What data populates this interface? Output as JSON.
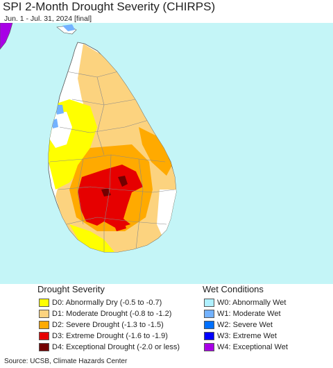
{
  "title": "SPI 2-Month Drought Severity (CHIRPS)",
  "subtitle": "Jun. 1 - Jul. 31, 2024 [final]",
  "legend": {
    "drought_heading": "Drought Severity",
    "wet_heading": "Wet Conditions",
    "drought_items": [
      {
        "label": "D0: Abnormally Dry (-0.5 to -0.7)",
        "color": "#ffff00"
      },
      {
        "label": "D1: Moderate Drought (-0.8 to -1.2)",
        "color": "#fcd37f"
      },
      {
        "label": "D2: Severe Drought (-1.3 to -1.5)",
        "color": "#ffaa00"
      },
      {
        "label": "D3: Extreme Drought (-1.6 to -1.9)",
        "color": "#e60000"
      },
      {
        "label": "D4: Exceptional Drought (-2.0 or less)",
        "color": "#730000"
      }
    ],
    "wet_items": [
      {
        "label": "W0: Abnormally Wet",
        "color": "#aff0ff"
      },
      {
        "label": "W1: Moderate Wet",
        "color": "#73b2ff"
      },
      {
        "label": "W2: Severe Wet",
        "color": "#0070ff"
      },
      {
        "label": "W3: Extreme Wet",
        "color": "#0000ff"
      },
      {
        "label": "W4: Exceptional Wet",
        "color": "#a800e6"
      }
    ]
  },
  "source": "Source: UCSB, Climate Hazards Center",
  "colors": {
    "water": "#c4f5f7",
    "land_normal": "#ffffff",
    "boundary": "#8a8a8a"
  }
}
